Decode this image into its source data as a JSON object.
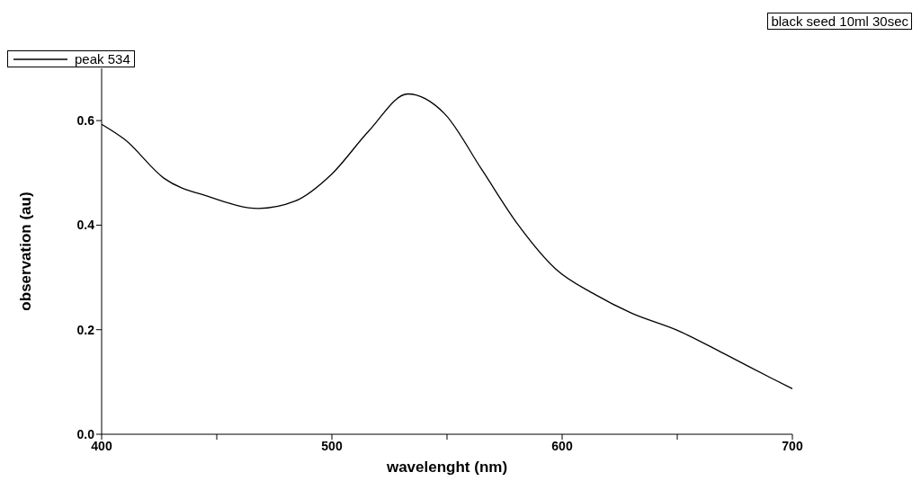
{
  "chart_data": {
    "type": "line",
    "xlabel": "wavelenght (nm)",
    "ylabel": "observation (au)",
    "annotations": [
      "black seed 10ml 30sec"
    ],
    "xlim": [
      400,
      700
    ],
    "xticks": [
      400,
      {
        "value": 450,
        "label": null
      },
      500,
      {
        "value": 550,
        "label": null
      },
      600,
      {
        "value": 650,
        "label": null
      },
      700
    ],
    "ylim": [
      0,
      0.7
    ],
    "yticks": [
      {
        "value": 0,
        "label": "0.0"
      },
      0.2,
      0.4,
      0.6
    ],
    "grid": false,
    "legend": "top",
    "marker": "none",
    "line_style": "solid",
    "series": [
      {
        "name": "peak 534",
        "color": "#000000",
        "x": [
          400,
          410,
          427,
          447,
          468,
          484,
          500,
          516,
          533,
          549,
          565,
          581,
          597,
          614,
          630,
          650,
          670,
          691,
          700
        ],
        "values": [
          0.593,
          0.564,
          0.49,
          0.454,
          0.432,
          0.446,
          0.498,
          0.58,
          0.651,
          0.613,
          0.507,
          0.4,
          0.317,
          0.268,
          0.232,
          0.199,
          0.155,
          0.107,
          0.087
        ]
      }
    ]
  }
}
